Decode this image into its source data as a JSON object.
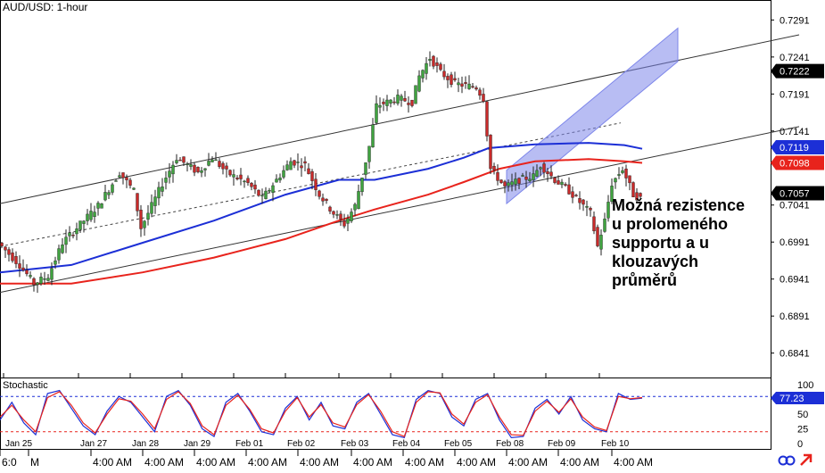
{
  "chart_data": [
    {
      "type": "candlestick",
      "title": "AUD/USD: 1-hour",
      "ylim": [
        0.6808,
        0.7318
      ],
      "y_ticks": [
        "0.7291",
        "0.7241",
        "0.7191",
        "0.7141",
        "0.7041",
        "0.6991",
        "0.6941",
        "0.6891",
        "0.6841"
      ],
      "price_tags": [
        {
          "value": "0.7222",
          "bg": "#000000",
          "fg": "#ffffff"
        },
        {
          "value": "0.7119",
          "bg": "#1c2fd6",
          "fg": "#ffffff"
        },
        {
          "value": "0.7098",
          "bg": "#e8231c",
          "fg": "#ffffff"
        },
        {
          "value": "0.7057",
          "bg": "#000000",
          "fg": "#ffffff"
        }
      ],
      "x_dates": [
        "Jan 25",
        "Jan 27",
        "Jan 28",
        "Jan 29",
        "Feb 01",
        "Feb 02",
        "Feb 03",
        "Feb 04",
        "Feb 05",
        "Feb 08",
        "Feb 09",
        "Feb 10"
      ],
      "x_times": [
        "6:0",
        "M",
        "4:00 AM",
        "4:00 AM",
        "4:00 AM",
        "4:00 AM",
        "4:00 AM",
        "4:00 AM",
        "4:00 AM",
        "4:00 AM",
        "4:00 AM",
        "4:00 AM",
        "4:00 AM"
      ],
      "price_path": [
        [
          0,
          0.699
        ],
        [
          6,
          0.696
        ],
        [
          10,
          0.6935
        ],
        [
          14,
          0.6945
        ],
        [
          18,
          0.699
        ],
        [
          24,
          0.702
        ],
        [
          28,
          0.704
        ],
        [
          34,
          0.7085
        ],
        [
          38,
          0.706
        ],
        [
          40,
          0.701
        ],
        [
          46,
          0.707
        ],
        [
          50,
          0.7105
        ],
        [
          56,
          0.7085
        ],
        [
          60,
          0.7105
        ],
        [
          64,
          0.7085
        ],
        [
          70,
          0.707
        ],
        [
          74,
          0.705
        ],
        [
          78,
          0.7075
        ],
        [
          82,
          0.71
        ],
        [
          86,
          0.7095
        ],
        [
          90,
          0.7055
        ],
        [
          94,
          0.703
        ],
        [
          97,
          0.7015
        ],
        [
          100,
          0.704
        ],
        [
          104,
          0.712
        ],
        [
          106,
          0.7175
        ],
        [
          112,
          0.7185
        ],
        [
          116,
          0.718
        ],
        [
          118,
          0.7215
        ],
        [
          121,
          0.724
        ],
        [
          124,
          0.722
        ],
        [
          128,
          0.7205
        ],
        [
          134,
          0.72
        ],
        [
          136,
          0.7185
        ],
        [
          138,
          0.709
        ],
        [
          142,
          0.7065
        ],
        [
          146,
          0.7075
        ],
        [
          150,
          0.708
        ],
        [
          152,
          0.7095
        ],
        [
          156,
          0.7075
        ],
        [
          160,
          0.706
        ],
        [
          164,
          0.704
        ],
        [
          166,
          0.703
        ],
        [
          168,
          0.6985
        ],
        [
          170,
          0.702
        ],
        [
          172,
          0.707
        ],
        [
          175,
          0.709
        ],
        [
          178,
          0.7055
        ],
        [
          180,
          0.705
        ]
      ],
      "ma_blue": [
        [
          0,
          0.695
        ],
        [
          20,
          0.696
        ],
        [
          40,
          0.699
        ],
        [
          60,
          0.702
        ],
        [
          80,
          0.7055
        ],
        [
          95,
          0.7075
        ],
        [
          105,
          0.7075
        ],
        [
          120,
          0.709
        ],
        [
          130,
          0.7105
        ],
        [
          137,
          0.7118
        ],
        [
          150,
          0.7123
        ],
        [
          165,
          0.7125
        ],
        [
          175,
          0.7122
        ],
        [
          180,
          0.7117
        ]
      ],
      "ma_red": [
        [
          0,
          0.6935
        ],
        [
          20,
          0.6935
        ],
        [
          40,
          0.695
        ],
        [
          60,
          0.697
        ],
        [
          80,
          0.6995
        ],
        [
          95,
          0.702
        ],
        [
          105,
          0.7035
        ],
        [
          120,
          0.7055
        ],
        [
          130,
          0.7072
        ],
        [
          140,
          0.709
        ],
        [
          150,
          0.71
        ],
        [
          165,
          0.7103
        ],
        [
          175,
          0.71
        ],
        [
          180,
          0.7098
        ]
      ],
      "channel_upper": [
        [
          0,
          0.7043
        ],
        [
          224,
          0.7271
        ]
      ],
      "channel_lower": [
        [
          0,
          0.6923
        ],
        [
          224,
          0.7147
        ]
      ],
      "channel_mid": [
        [
          0,
          0.6985
        ],
        [
          174,
          0.7152
        ]
      ],
      "resistance_zone": {
        "x1": 142,
        "x2": 190,
        "y_low": 0.7043,
        "y_high": 0.7088,
        "slope": 0.0004
      },
      "annotation": [
        "Možná rezistence",
        "u prolomeného",
        "supportu a u",
        "klouzavých",
        "průměrů"
      ]
    },
    {
      "type": "line",
      "title": "Stochastic",
      "ylim": [
        0,
        100
      ],
      "y_ticks": [
        "100",
        "75",
        "50",
        "25",
        "0"
      ],
      "price_tag": {
        "value": "77.23",
        "bg": "#1c2fd6",
        "fg": "#ffffff"
      },
      "levels": [
        80,
        20
      ],
      "series": [
        {
          "color": "#1c2fd6",
          "values": [
            40,
            70,
            35,
            15,
            85,
            90,
            60,
            30,
            15,
            55,
            80,
            70,
            45,
            20,
            80,
            90,
            65,
            25,
            12,
            70,
            85,
            55,
            20,
            15,
            60,
            80,
            40,
            70,
            30,
            25,
            70,
            85,
            50,
            15,
            10,
            75,
            90,
            85,
            45,
            30,
            75,
            85,
            40,
            10,
            12,
            60,
            75,
            50,
            80,
            40,
            25,
            20,
            85,
            75,
            77
          ]
        },
        {
          "color": "#e8231c",
          "values": [
            45,
            65,
            40,
            20,
            78,
            88,
            65,
            35,
            18,
            50,
            76,
            72,
            50,
            25,
            75,
            88,
            68,
            30,
            15,
            65,
            82,
            58,
            25,
            18,
            55,
            78,
            45,
            66,
            35,
            28,
            66,
            83,
            55,
            20,
            12,
            70,
            88,
            86,
            50,
            33,
            70,
            83,
            45,
            15,
            14,
            55,
            72,
            53,
            76,
            45,
            28,
            22,
            80,
            76,
            78
          ]
        }
      ]
    }
  ]
}
